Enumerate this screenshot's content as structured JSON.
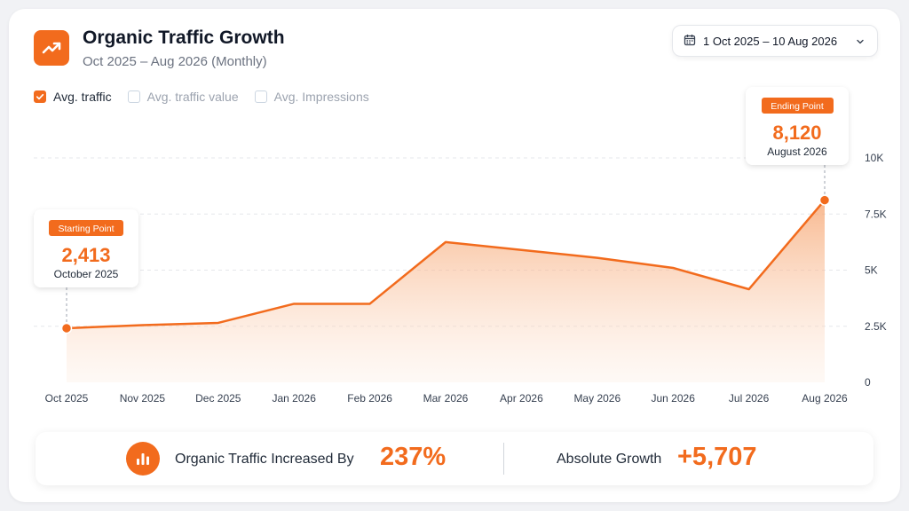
{
  "header": {
    "title": "Organic Traffic Growth",
    "subtitle": "Oct 2025 – Aug 2026 (Monthly)",
    "date_range": "1 Oct 2025 – 10 Aug 2026"
  },
  "toggles": [
    {
      "label": "Avg. traffic",
      "checked": true
    },
    {
      "label": "Avg. traffic value",
      "checked": false
    },
    {
      "label": "Avg. Impressions",
      "checked": false
    }
  ],
  "callouts": {
    "start": {
      "badge": "Starting Point",
      "value": "2,413",
      "date": "October 2025"
    },
    "end": {
      "badge": "Ending Point",
      "value": "8,120",
      "date": "August 2026"
    }
  },
  "summary": {
    "label1": "Organic Traffic Increased By",
    "value1": "237%",
    "label2": "Absolute Growth",
    "value2": "+5,707"
  },
  "colors": {
    "accent": "#f26b1d",
    "grid": "#e5e7eb"
  },
  "icons": {
    "logo": "trend-up-icon",
    "date": "calendar-icon",
    "dropdown": "chevron-down-icon",
    "summary": "bar-chart-icon"
  },
  "chart_data": {
    "type": "area",
    "categories": [
      "Oct 2025",
      "Nov 2025",
      "Dec 2025",
      "Jan 2026",
      "Feb 2026",
      "Mar 2026",
      "Apr 2026",
      "May 2026",
      "Jun 2026",
      "Jul 2026",
      "Aug 2026"
    ],
    "series": [
      {
        "values": [
          2413,
          2550,
          2650,
          3500,
          3500,
          6250,
          5900,
          5550,
          5100,
          4150,
          8120
        ]
      }
    ],
    "ylim": [
      0,
      10000
    ],
    "yticks": [
      {
        "v": 0,
        "label": "0"
      },
      {
        "v": 2500,
        "label": "2.5K"
      },
      {
        "v": 5000,
        "label": "5K"
      },
      {
        "v": 7500,
        "label": "7.5K"
      },
      {
        "v": 10000,
        "label": "10K"
      }
    ],
    "grid": true,
    "y_axis_position": "right"
  }
}
